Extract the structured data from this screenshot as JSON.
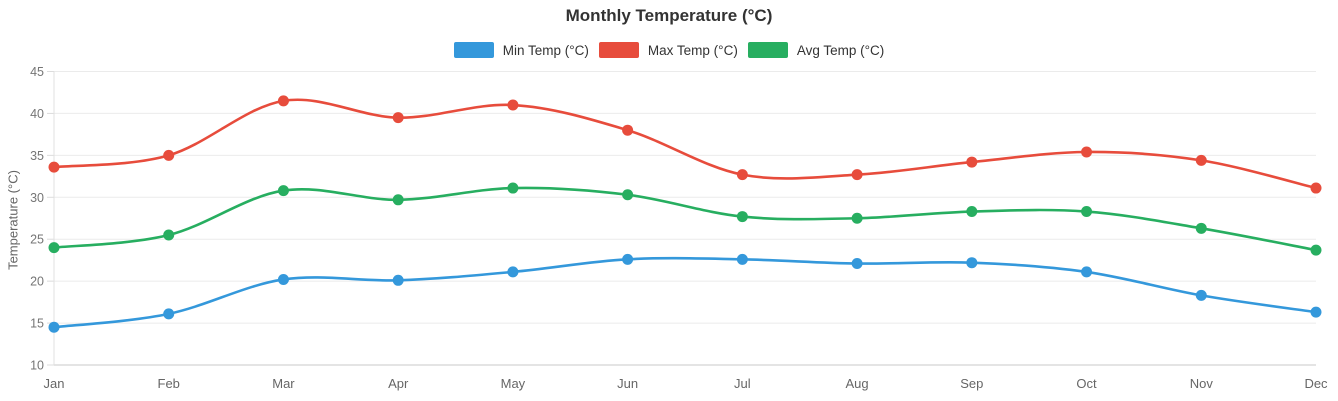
{
  "title": "Monthly Temperature (°C)",
  "legend": {
    "items": [
      {
        "label": "Min Temp (°C)",
        "color": "#3498db"
      },
      {
        "label": "Max Temp (°C)",
        "color": "#e74c3c"
      },
      {
        "label": "Avg Temp (°C)",
        "color": "#27ae60"
      }
    ]
  },
  "chart_data": {
    "type": "line",
    "title": "Monthly Temperature (°C)",
    "categories": [
      "Jan",
      "Feb",
      "Mar",
      "Apr",
      "May",
      "Jun",
      "Jul",
      "Aug",
      "Sep",
      "Oct",
      "Nov",
      "Dec"
    ],
    "series": [
      {
        "name": "Min Temp (°C)",
        "color": "#3498db",
        "values": [
          14.5,
          16.1,
          20.2,
          20.1,
          21.1,
          22.6,
          22.6,
          22.1,
          22.2,
          21.1,
          18.3,
          16.3
        ]
      },
      {
        "name": "Max Temp (°C)",
        "color": "#e74c3c",
        "values": [
          33.6,
          35.0,
          41.5,
          39.5,
          41.0,
          38.0,
          32.7,
          32.7,
          34.2,
          35.4,
          34.4,
          31.1
        ]
      },
      {
        "name": "Avg Temp (°C)",
        "color": "#27ae60",
        "values": [
          24.0,
          25.5,
          30.8,
          29.7,
          31.1,
          30.3,
          27.7,
          27.5,
          28.3,
          28.3,
          26.3,
          23.7
        ]
      }
    ],
    "xlabel": "",
    "ylabel": "Temperature (°C)",
    "ylim": [
      10,
      45
    ],
    "ytick_step": 5,
    "grid": true,
    "legend_position": "top",
    "smooth": true,
    "point_radius": 5.5
  }
}
